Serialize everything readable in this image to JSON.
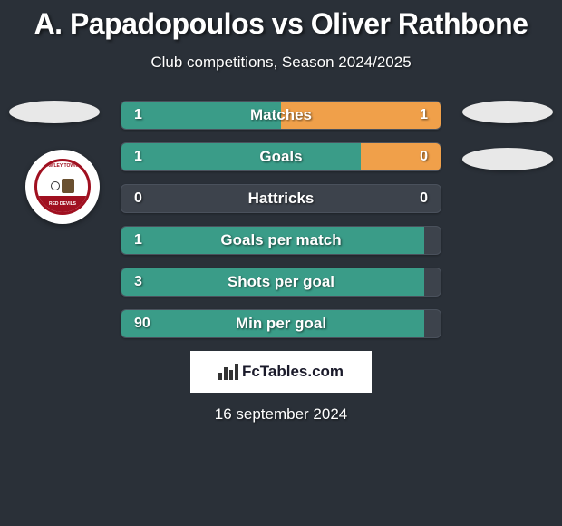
{
  "title": "A. Papadopoulos vs Oliver Rathbone",
  "subtitle": "Club competitions, Season 2024/2025",
  "date": "16 september 2024",
  "attribution": "FcTables.com",
  "colors": {
    "left_bar": "#3a9c88",
    "right_bar": "#f0a04a",
    "row_bg": "#3d434c",
    "page_bg": "#2a3038"
  },
  "badge": {
    "top_text": "CRAWLEY TOWN FC",
    "bottom_text": "RED DEVILS"
  },
  "rows": [
    {
      "label": "Matches",
      "left_val": "1",
      "right_val": "1",
      "left_pct": 50,
      "right_pct": 50
    },
    {
      "label": "Goals",
      "left_val": "1",
      "right_val": "0",
      "left_pct": 75,
      "right_pct": 25
    },
    {
      "label": "Hattricks",
      "left_val": "0",
      "right_val": "0",
      "left_pct": 0,
      "right_pct": 0
    },
    {
      "label": "Goals per match",
      "left_val": "1",
      "right_val": "",
      "left_pct": 95,
      "right_pct": 0
    },
    {
      "label": "Shots per goal",
      "left_val": "3",
      "right_val": "",
      "left_pct": 95,
      "right_pct": 0
    },
    {
      "label": "Min per goal",
      "left_val": "90",
      "right_val": "",
      "left_pct": 95,
      "right_pct": 0
    }
  ]
}
